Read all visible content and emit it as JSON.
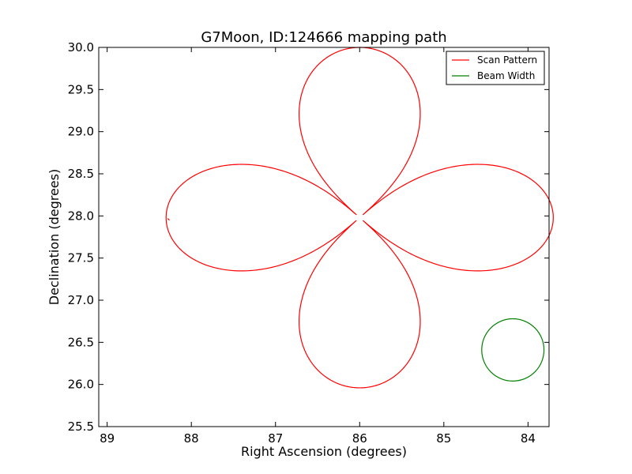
{
  "chart_data": {
    "type": "line",
    "title": "G7Moon, ID:124666 mapping path",
    "xlabel": "Right Ascension (degrees)",
    "ylabel": "Declination (degrees)",
    "xlim": [
      89.1,
      83.75
    ],
    "ylim": [
      25.5,
      30.0
    ],
    "x_inverted": true,
    "xticks": [
      89,
      88,
      87,
      86,
      85,
      84
    ],
    "xtick_labels": [
      "89",
      "88",
      "87",
      "86",
      "85",
      "84"
    ],
    "yticks": [
      25.5,
      26.0,
      26.5,
      27.0,
      27.5,
      28.0,
      28.5,
      29.0,
      29.5,
      30.0
    ],
    "ytick_labels": [
      "25.5",
      "26.0",
      "26.5",
      "27.0",
      "27.5",
      "28.0",
      "28.5",
      "29.0",
      "29.5",
      "30.0"
    ],
    "grid": false,
    "legend_position": "top-right",
    "series": [
      {
        "name": "Scan Pattern",
        "color": "#ff0000",
        "kind": "four-petal rosette",
        "center": [
          86.0,
          27.98
        ],
        "petal_extent_ra": 2.3,
        "petal_extent_dec": 2.02,
        "petal_peak_halfwidth": 0.54,
        "gap": {
          "ra": 88.28,
          "dec_from": 27.97,
          "dec_to": 27.9
        }
      },
      {
        "name": "Beam Width",
        "color": "#008000",
        "kind": "circle",
        "center": [
          84.18,
          26.41
        ],
        "radius": 0.37
      }
    ]
  }
}
